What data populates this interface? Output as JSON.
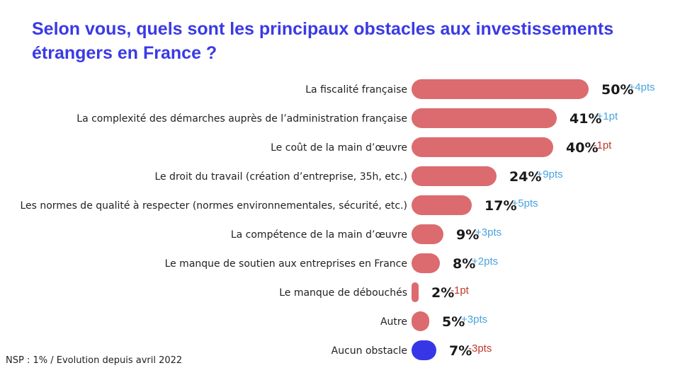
{
  "title": "Selon vous, quels sont les principaux obstacles aux investissements étrangers en France ?",
  "footnote": "NSP : 1% / Evolution depuis avril 2022",
  "colors": {
    "bar": "#dc6b6f",
    "highlight_bar": "#3636e8",
    "positive": "#4aa3df",
    "negative": "#c0392b",
    "title": "#3a3ae6"
  },
  "chart_data": {
    "type": "bar",
    "orientation": "horizontal",
    "title": "Selon vous, quels sont les principaux obstacles aux investissements étrangers en France ?",
    "categories": [
      "La fiscalité française",
      "La complexité des démarches auprès de l’administration française",
      "Le coût de la main d’œuvre",
      "Le droit du travail (création d’entreprise, 35h, etc.)",
      "Les normes de qualité à respecter (normes environnementales, sécurité, etc.)",
      "La compétence de la main d’œuvre",
      "Le manque de soutien aux entreprises en France",
      "Le manque de débouchés",
      "Autre",
      "Aucun obstacle"
    ],
    "values": [
      50,
      41,
      40,
      24,
      17,
      9,
      8,
      2,
      5,
      7
    ],
    "value_labels": [
      "50%",
      "41%",
      "40%",
      "24%",
      "17%",
      "9%",
      "8%",
      "2%",
      "5%",
      "7%"
    ],
    "evolution": [
      "+4pts",
      "+1pt",
      "-1pt",
      "+9pts",
      "+5pts",
      "+3pts",
      "+2pts",
      "-1pt",
      "+3pts",
      "-3pts"
    ],
    "highlight_index": 9,
    "xlim": [
      0,
      50
    ],
    "xlabel": "",
    "ylabel": "",
    "grid": false
  }
}
